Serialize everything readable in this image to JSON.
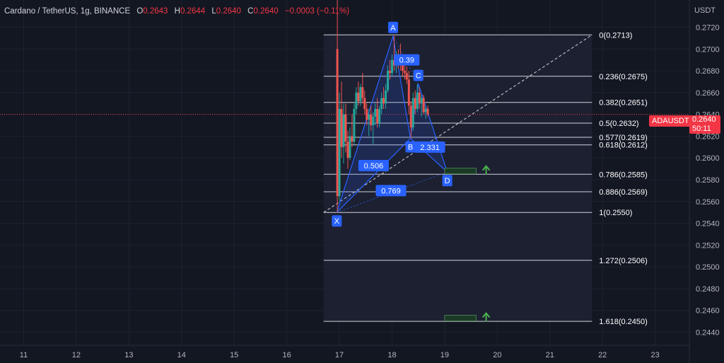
{
  "header": {
    "symbol": "Cardano / TetherUS, 1g, BINANCE",
    "open_label": "O",
    "open": "0.2643",
    "high_label": "H",
    "high": "0.2644",
    "low_label": "L",
    "low": "0.2640",
    "close_label": "C",
    "close": "0.2640",
    "change": "−0.0003 (−0.11%)"
  },
  "price_axis": {
    "currency": "USDT"
  },
  "last_price": {
    "symbol_badge": "ADAUSDT",
    "price": "0.2640",
    "countdown": "50:11"
  },
  "colors": {
    "background": "#131722",
    "grid": "#1e222d",
    "up": "#26a69a",
    "down": "#ef5350",
    "pattern": "#2962ff",
    "level_line": "#d1d4dc",
    "price_line": "#f23645",
    "target_arrow": "#4caf50"
  },
  "chart_data": {
    "type": "candlestick",
    "x_ticks": [
      "11",
      "12",
      "13",
      "14",
      "15",
      "16",
      "17",
      "18",
      "19",
      "20",
      "21",
      "22",
      "23"
    ],
    "x_range": [
      10.55,
      23.65
    ],
    "y_ticks": [
      "0.2720",
      "0.2700",
      "0.2680",
      "0.2660",
      "0.2640",
      "0.2620",
      "0.2600",
      "0.2580",
      "0.2560",
      "0.2540",
      "0.2520",
      "0.2500",
      "0.2480",
      "0.2460",
      "0.2440"
    ],
    "y_range": [
      0.2428,
      0.2745
    ],
    "current_price": 0.264,
    "fib_levels": [
      {
        "ratio": "0",
        "price": "0.2713"
      },
      {
        "ratio": "0.236",
        "price": "0.2675"
      },
      {
        "ratio": "0.382",
        "price": "0.2651"
      },
      {
        "ratio": "0.5",
        "price": "0.2632"
      },
      {
        "ratio": "0.577",
        "price": "0.2619"
      },
      {
        "ratio": "0.618",
        "price": "0.2612"
      },
      {
        "ratio": "0.786",
        "price": "0.2585"
      },
      {
        "ratio": "0.886",
        "price": "0.2569"
      },
      {
        "ratio": "1",
        "price": "0.2550"
      },
      {
        "ratio": "1.272",
        "price": "0.2506"
      },
      {
        "ratio": "1.618",
        "price": "0.2450"
      }
    ],
    "fib_range_days": [
      16.7,
      21.8
    ],
    "trend_line": {
      "from": [
        16.7,
        0.255
      ],
      "to": [
        21.8,
        0.2713
      ]
    },
    "harmonic_points": [
      {
        "label": "X",
        "day": 16.95,
        "price": 0.255
      },
      {
        "label": "A",
        "day": 18.02,
        "price": 0.2712
      },
      {
        "label": "B",
        "day": 18.35,
        "price": 0.2618
      },
      {
        "label": "C",
        "day": 18.5,
        "price": 0.2668
      },
      {
        "label": "D",
        "day": 19.05,
        "price": 0.2587
      }
    ],
    "ratios": [
      {
        "text": "0.39",
        "day": 18.28,
        "price": 0.269
      },
      {
        "text": "0.506",
        "day": 17.65,
        "price": 0.2593
      },
      {
        "text": "2.331",
        "day": 18.72,
        "price": 0.261
      },
      {
        "text": "0.769",
        "day": 17.98,
        "price": 0.257
      }
    ],
    "target_zones": [
      {
        "from_day": 19.0,
        "to_day": 19.6,
        "price": 0.2588
      },
      {
        "from_day": 19.0,
        "to_day": 19.6,
        "price": 0.2453
      }
    ],
    "candles": [
      {
        "d": 16.96,
        "o": 0.27,
        "h": 0.2745,
        "l": 0.255,
        "c": 0.2565
      },
      {
        "d": 17.0,
        "o": 0.2565,
        "h": 0.266,
        "l": 0.256,
        "c": 0.2645
      },
      {
        "d": 17.04,
        "o": 0.2645,
        "h": 0.267,
        "l": 0.26,
        "c": 0.261
      },
      {
        "d": 17.08,
        "o": 0.261,
        "h": 0.265,
        "l": 0.2595,
        "c": 0.264
      },
      {
        "d": 17.12,
        "o": 0.264,
        "h": 0.265,
        "l": 0.2605,
        "c": 0.2615
      },
      {
        "d": 17.16,
        "o": 0.2615,
        "h": 0.2625,
        "l": 0.259,
        "c": 0.26
      },
      {
        "d": 17.2,
        "o": 0.26,
        "h": 0.2628,
        "l": 0.2598,
        "c": 0.262
      },
      {
        "d": 17.24,
        "o": 0.262,
        "h": 0.264,
        "l": 0.261,
        "c": 0.2615
      },
      {
        "d": 17.28,
        "o": 0.2615,
        "h": 0.265,
        "l": 0.2612,
        "c": 0.2645
      },
      {
        "d": 17.32,
        "o": 0.2645,
        "h": 0.2665,
        "l": 0.264,
        "c": 0.266
      },
      {
        "d": 17.36,
        "o": 0.266,
        "h": 0.267,
        "l": 0.2648,
        "c": 0.2652
      },
      {
        "d": 17.4,
        "o": 0.2652,
        "h": 0.2668,
        "l": 0.2648,
        "c": 0.2665
      },
      {
        "d": 17.44,
        "o": 0.2665,
        "h": 0.2678,
        "l": 0.265,
        "c": 0.2655
      },
      {
        "d": 17.48,
        "o": 0.2655,
        "h": 0.2662,
        "l": 0.264,
        "c": 0.2645
      },
      {
        "d": 17.52,
        "o": 0.2645,
        "h": 0.265,
        "l": 0.263,
        "c": 0.2635
      },
      {
        "d": 17.56,
        "o": 0.2635,
        "h": 0.2645,
        "l": 0.262,
        "c": 0.264
      },
      {
        "d": 17.6,
        "o": 0.264,
        "h": 0.2648,
        "l": 0.2625,
        "c": 0.263
      },
      {
        "d": 17.64,
        "o": 0.263,
        "h": 0.2642,
        "l": 0.2612,
        "c": 0.2638
      },
      {
        "d": 17.68,
        "o": 0.2638,
        "h": 0.265,
        "l": 0.263,
        "c": 0.2645
      },
      {
        "d": 17.72,
        "o": 0.2645,
        "h": 0.2655,
        "l": 0.2628,
        "c": 0.2632
      },
      {
        "d": 17.76,
        "o": 0.2632,
        "h": 0.2648,
        "l": 0.2628,
        "c": 0.2645
      },
      {
        "d": 17.8,
        "o": 0.2645,
        "h": 0.266,
        "l": 0.264,
        "c": 0.2655
      },
      {
        "d": 17.84,
        "o": 0.2655,
        "h": 0.2665,
        "l": 0.2645,
        "c": 0.265
      },
      {
        "d": 17.88,
        "o": 0.265,
        "h": 0.2668,
        "l": 0.2645,
        "c": 0.2662
      },
      {
        "d": 17.92,
        "o": 0.2662,
        "h": 0.2685,
        "l": 0.266,
        "c": 0.268
      },
      {
        "d": 17.96,
        "o": 0.268,
        "h": 0.269,
        "l": 0.2672,
        "c": 0.2678
      },
      {
        "d": 18.0,
        "o": 0.2678,
        "h": 0.2695,
        "l": 0.2675,
        "c": 0.269
      },
      {
        "d": 18.04,
        "o": 0.269,
        "h": 0.2712,
        "l": 0.268,
        "c": 0.2685
      },
      {
        "d": 18.08,
        "o": 0.2685,
        "h": 0.2698,
        "l": 0.2678,
        "c": 0.2692
      },
      {
        "d": 18.12,
        "o": 0.2692,
        "h": 0.27,
        "l": 0.2682,
        "c": 0.2688
      },
      {
        "d": 18.16,
        "o": 0.2688,
        "h": 0.2705,
        "l": 0.268,
        "c": 0.2685
      },
      {
        "d": 18.2,
        "o": 0.2685,
        "h": 0.2692,
        "l": 0.2675,
        "c": 0.268
      },
      {
        "d": 18.24,
        "o": 0.268,
        "h": 0.2688,
        "l": 0.2672,
        "c": 0.2678
      },
      {
        "d": 18.28,
        "o": 0.2678,
        "h": 0.2684,
        "l": 0.2668,
        "c": 0.2672
      },
      {
        "d": 18.32,
        "o": 0.2672,
        "h": 0.268,
        "l": 0.264,
        "c": 0.2648
      },
      {
        "d": 18.36,
        "o": 0.2648,
        "h": 0.2652,
        "l": 0.2618,
        "c": 0.2628
      },
      {
        "d": 18.4,
        "o": 0.2628,
        "h": 0.266,
        "l": 0.2625,
        "c": 0.2655
      },
      {
        "d": 18.44,
        "o": 0.2655,
        "h": 0.2662,
        "l": 0.264,
        "c": 0.2645
      },
      {
        "d": 18.48,
        "o": 0.2645,
        "h": 0.2668,
        "l": 0.2642,
        "c": 0.266
      },
      {
        "d": 18.52,
        "o": 0.266,
        "h": 0.2665,
        "l": 0.2645,
        "c": 0.265
      },
      {
        "d": 18.56,
        "o": 0.265,
        "h": 0.2658,
        "l": 0.2638,
        "c": 0.2655
      },
      {
        "d": 18.6,
        "o": 0.2655,
        "h": 0.2658,
        "l": 0.264,
        "c": 0.2642
      },
      {
        "d": 18.64,
        "o": 0.2642,
        "h": 0.2648,
        "l": 0.2636,
        "c": 0.2645
      },
      {
        "d": 18.68,
        "o": 0.2645,
        "h": 0.2648,
        "l": 0.2638,
        "c": 0.264
      }
    ]
  }
}
